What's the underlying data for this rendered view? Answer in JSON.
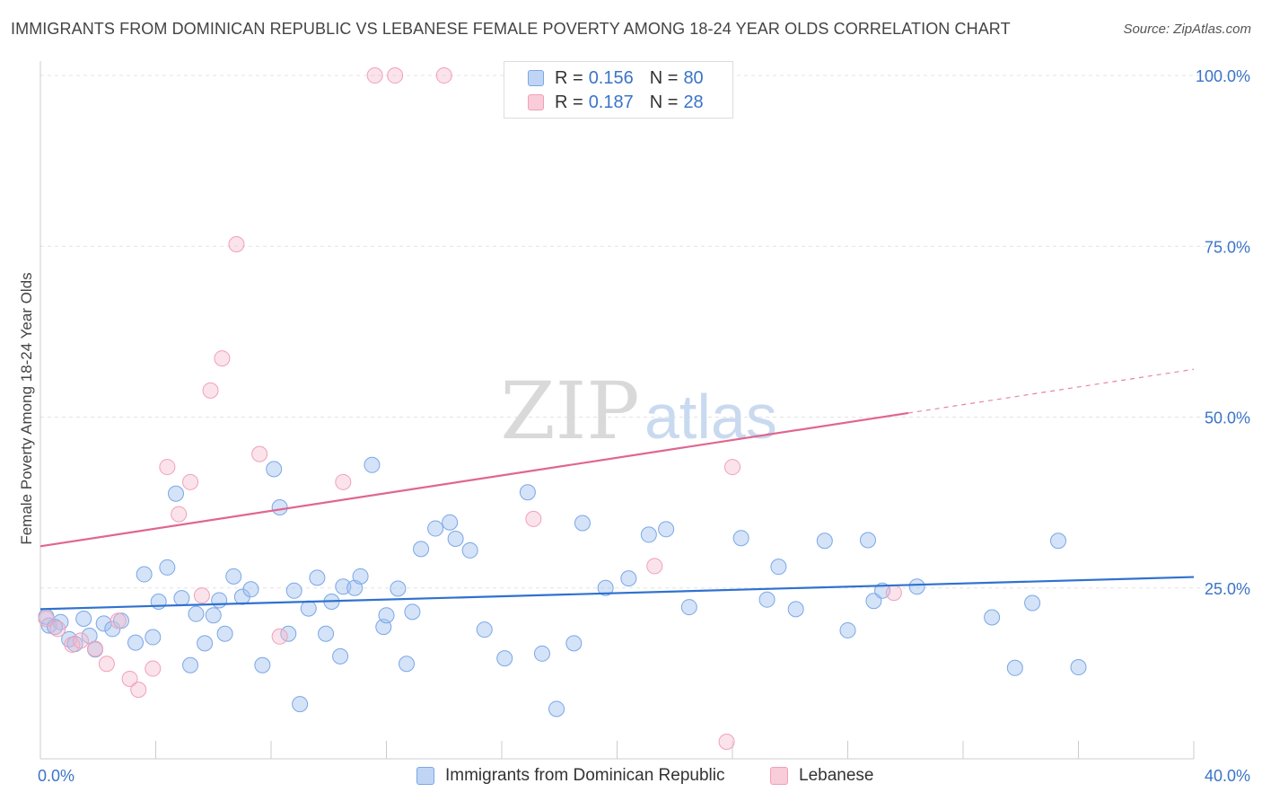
{
  "header": {
    "title": "IMMIGRANTS FROM DOMINICAN REPUBLIC VS LEBANESE FEMALE POVERTY AMONG 18-24 YEAR OLDS CORRELATION CHART",
    "source": "Source: ZipAtlas.com"
  },
  "watermark": {
    "zip": "ZIP",
    "atlas": "atlas"
  },
  "legend": {
    "r_label": "R =",
    "n_label": "N =",
    "rows": [
      {
        "r": "0.156",
        "n": "80"
      },
      {
        "r": "0.187",
        "n": "28"
      }
    ]
  },
  "chart_data": {
    "type": "scatter",
    "title": "IMMIGRANTS FROM DOMINICAN REPUBLIC VS LEBANESE FEMALE POVERTY AMONG 18-24 YEAR OLDS CORRELATION CHART",
    "xlabel": "",
    "ylabel": "Female Poverty Among 18-24 Year Olds",
    "xlim": [
      0,
      40
    ],
    "ylim": [
      0,
      105
    ],
    "x_tick_labels": [
      "0.0%",
      "40.0%"
    ],
    "y_ticks": [
      25,
      50,
      75,
      100
    ],
    "y_tick_labels": [
      "25.0%",
      "50.0%",
      "75.0%",
      "100.0%"
    ],
    "grid": true,
    "legend_position": "bottom",
    "series": [
      {
        "name": "Immigrants from Dominican Republic",
        "color": "#7aa7e8",
        "line_color": "#2f72cf",
        "r": 0.156,
        "n": 80,
        "trend": {
          "x0": 0,
          "y0": 21.9,
          "x1": 40,
          "y1": 26.6
        },
        "points": [
          [
            0.3,
            19.5
          ],
          [
            0.7,
            20.0
          ],
          [
            1.0,
            17.5
          ],
          [
            1.2,
            16.8
          ],
          [
            1.5,
            20.5
          ],
          [
            1.7,
            18.0
          ],
          [
            1.9,
            16.0
          ],
          [
            2.2,
            19.8
          ],
          [
            2.5,
            19.0
          ],
          [
            2.8,
            20.2
          ],
          [
            3.3,
            17.0
          ],
          [
            3.6,
            27.0
          ],
          [
            3.9,
            17.8
          ],
          [
            4.1,
            23.0
          ],
          [
            4.4,
            28.0
          ],
          [
            4.7,
            38.8
          ],
          [
            4.9,
            23.5
          ],
          [
            5.2,
            13.7
          ],
          [
            5.4,
            21.2
          ],
          [
            5.7,
            16.9
          ],
          [
            6.0,
            21.0
          ],
          [
            6.2,
            23.2
          ],
          [
            6.4,
            18.3
          ],
          [
            6.7,
            26.7
          ],
          [
            7.0,
            23.7
          ],
          [
            7.3,
            24.8
          ],
          [
            7.7,
            13.7
          ],
          [
            8.1,
            42.4
          ],
          [
            8.3,
            36.8
          ],
          [
            8.6,
            18.3
          ],
          [
            8.8,
            24.6
          ],
          [
            9.0,
            8.0
          ],
          [
            9.3,
            22.0
          ],
          [
            9.6,
            26.5
          ],
          [
            9.9,
            18.3
          ],
          [
            10.1,
            23.0
          ],
          [
            10.4,
            15.0
          ],
          [
            10.5,
            25.2
          ],
          [
            10.9,
            25.0
          ],
          [
            11.1,
            26.7
          ],
          [
            11.5,
            43.0
          ],
          [
            11.9,
            19.3
          ],
          [
            12.0,
            21.0
          ],
          [
            12.4,
            24.9
          ],
          [
            12.7,
            13.9
          ],
          [
            12.9,
            21.5
          ],
          [
            13.2,
            30.7
          ],
          [
            13.7,
            33.7
          ],
          [
            14.2,
            34.6
          ],
          [
            14.4,
            32.2
          ],
          [
            14.9,
            30.5
          ],
          [
            15.4,
            18.9
          ],
          [
            16.1,
            14.7
          ],
          [
            16.9,
            39.0
          ],
          [
            17.4,
            15.4
          ],
          [
            17.9,
            7.3
          ],
          [
            18.5,
            16.9
          ],
          [
            18.8,
            34.5
          ],
          [
            19.6,
            25.0
          ],
          [
            20.4,
            26.4
          ],
          [
            21.1,
            32.8
          ],
          [
            21.7,
            33.6
          ],
          [
            22.5,
            22.2
          ],
          [
            24.3,
            32.3
          ],
          [
            25.2,
            23.3
          ],
          [
            25.6,
            28.1
          ],
          [
            26.2,
            21.9
          ],
          [
            27.2,
            31.9
          ],
          [
            28.0,
            18.8
          ],
          [
            28.7,
            32.0
          ],
          [
            28.9,
            23.1
          ],
          [
            29.2,
            24.6
          ],
          [
            30.4,
            25.2
          ],
          [
            33.0,
            20.7
          ],
          [
            33.8,
            13.3
          ],
          [
            34.4,
            22.8
          ],
          [
            35.3,
            31.9
          ],
          [
            36.0,
            13.4
          ],
          [
            0.2,
            20.8
          ],
          [
            0.5,
            19.3
          ]
        ]
      },
      {
        "name": "Lebanese",
        "color": "#f1a0b8",
        "line_color": "#e0668f",
        "r": 0.187,
        "n": 28,
        "trend": {
          "x0": 0,
          "y0": 31.1,
          "x1": 30.1,
          "y1": 50.6
        },
        "trend_dashed": {
          "x0": 30.1,
          "y0": 50.6,
          "x1": 40,
          "y1": 57.0
        },
        "points": [
          [
            0.2,
            20.5
          ],
          [
            0.6,
            19.0
          ],
          [
            1.1,
            16.7
          ],
          [
            1.4,
            17.3
          ],
          [
            1.9,
            16.1
          ],
          [
            2.3,
            13.9
          ],
          [
            2.7,
            20.2
          ],
          [
            3.1,
            11.7
          ],
          [
            3.4,
            10.1
          ],
          [
            3.9,
            13.2
          ],
          [
            4.4,
            42.7
          ],
          [
            4.8,
            35.8
          ],
          [
            5.2,
            40.5
          ],
          [
            5.6,
            23.9
          ],
          [
            5.9,
            53.9
          ],
          [
            6.3,
            58.6
          ],
          [
            6.8,
            75.3
          ],
          [
            7.6,
            44.6
          ],
          [
            8.3,
            17.9
          ],
          [
            10.5,
            40.5
          ],
          [
            11.6,
            100.0
          ],
          [
            12.3,
            100.0
          ],
          [
            14.0,
            100.0
          ],
          [
            17.1,
            35.1
          ],
          [
            21.3,
            28.2
          ],
          [
            23.8,
            2.5
          ],
          [
            24.0,
            42.7
          ],
          [
            29.6,
            24.3
          ]
        ]
      }
    ]
  }
}
